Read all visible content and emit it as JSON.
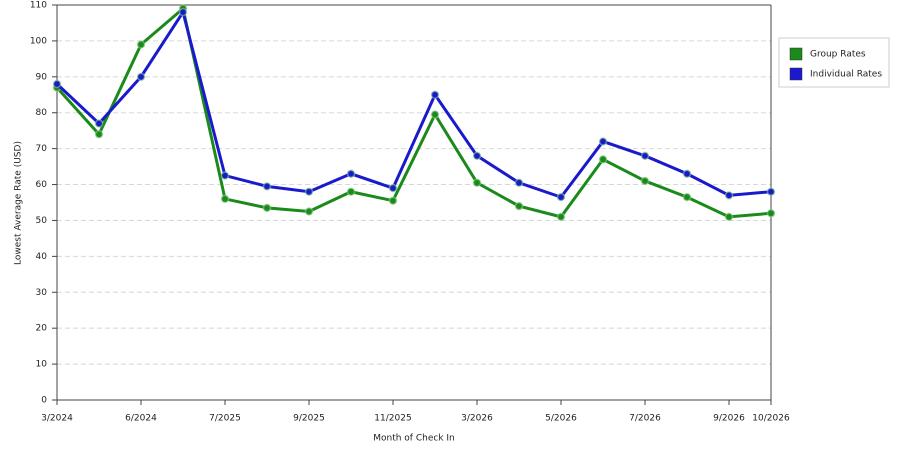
{
  "chart_data": {
    "type": "line",
    "x_label": "Month of Check In",
    "y_label": "Lowest Average Rate (USD)",
    "categories": [
      "3/2024",
      null,
      "6/2024",
      null,
      "7/2025",
      null,
      "9/2025",
      null,
      "11/2025",
      null,
      "3/2026",
      null,
      "5/2026",
      null,
      "7/2026",
      null,
      "9/2026",
      "10/2026"
    ],
    "series": [
      {
        "name": "Group Rates",
        "color": "#1a8a1a",
        "values": [
          87,
          74,
          99,
          109,
          56,
          53.5,
          52.5,
          58,
          55.5,
          79.5,
          60.5,
          54,
          51,
          67,
          61,
          56.5,
          51,
          52
        ]
      },
      {
        "name": "Individual Rates",
        "color": "#1a1acc",
        "values": [
          88,
          77,
          90,
          108,
          62.5,
          59.5,
          58,
          63,
          59,
          85,
          68,
          60.5,
          56.5,
          72,
          68,
          63,
          57,
          58
        ]
      }
    ],
    "ylim": [
      0,
      110
    ],
    "yticks": [
      0,
      10,
      20,
      30,
      40,
      50,
      60,
      70,
      80,
      90,
      100,
      110
    ],
    "grid": true,
    "legend": "right"
  }
}
